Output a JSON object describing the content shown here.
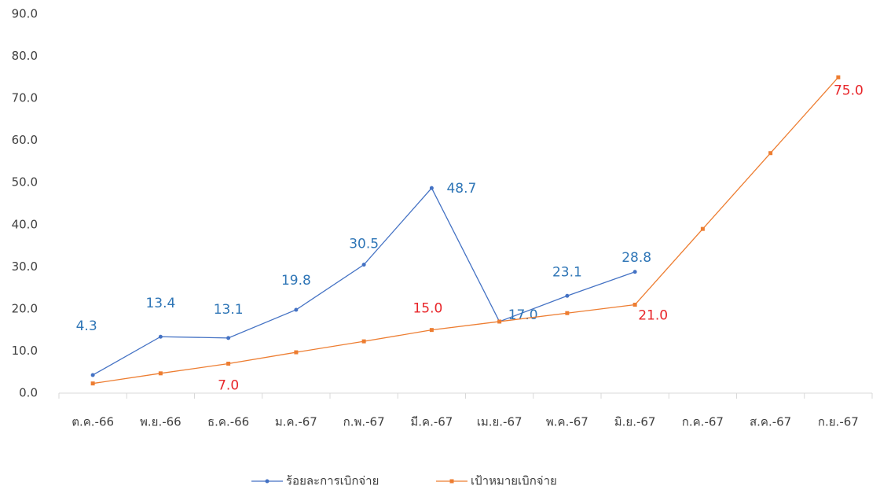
{
  "chart_data": {
    "type": "line",
    "categories": [
      "ต.ค.-66",
      "พ.ย.-66",
      "ธ.ค.-66",
      "ม.ค.-67",
      "ก.พ.-67",
      "มี.ค.-67",
      "เม.ย.-67",
      "พ.ค.-67",
      "มิ.ย.-67",
      "ก.ค.-67",
      "ส.ค.-67",
      "ก.ย.-67"
    ],
    "series": [
      {
        "name": "ร้อยละการเบิกจ่าย",
        "color": "#4472c4",
        "label_color": "#2e75b6",
        "values": [
          4.3,
          13.4,
          13.1,
          19.8,
          30.5,
          48.7,
          17.0,
          23.1,
          28.8,
          null,
          null,
          null
        ],
        "value_labels": [
          "4.3",
          "13.4",
          "13.1",
          "19.8",
          "30.5",
          "48.7",
          "17.0",
          "23.1",
          "28.8",
          null,
          null,
          null
        ]
      },
      {
        "name": "เป้าหมายเบิกจ่าย",
        "color": "#ed7d31",
        "label_color": "#e8262a",
        "values": [
          2.3,
          4.7,
          7.0,
          9.7,
          12.3,
          15.0,
          17.0,
          19.0,
          21.0,
          39.0,
          57.0,
          75.0
        ],
        "value_labels": [
          null,
          null,
          "7.0",
          null,
          null,
          "15.0",
          null,
          null,
          "21.0",
          null,
          null,
          "75.0"
        ]
      }
    ],
    "ylim": [
      0,
      90
    ],
    "yticks": [
      {
        "value": 0,
        "label": "0.0"
      },
      {
        "value": 10,
        "label": "10.0"
      },
      {
        "value": 20,
        "label": "20.0"
      },
      {
        "value": 30,
        "label": "30.0"
      },
      {
        "value": 40,
        "label": "40.0"
      },
      {
        "value": 50,
        "label": "50.0"
      },
      {
        "value": 60,
        "label": "60.0"
      },
      {
        "value": 70,
        "label": "70.0"
      },
      {
        "value": 80,
        "label": "80.0"
      },
      {
        "value": 90,
        "label": "90.0"
      }
    ],
    "legend": "bottom"
  }
}
